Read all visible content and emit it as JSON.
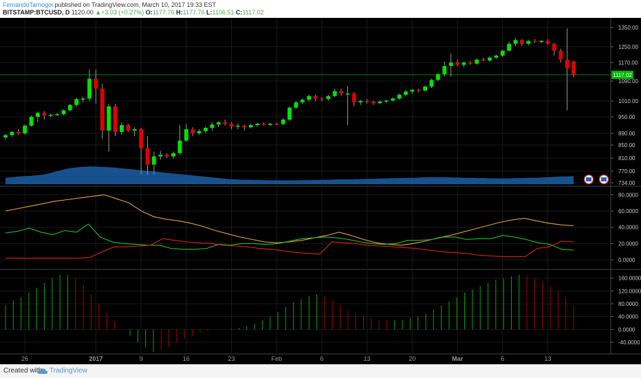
{
  "header": {
    "author": "FernandoTarnogol",
    "published_text": "published on TradingView.com, March 10, 2017 19:33 EST",
    "symbol": "BITSTAMP:BTCUSD, D",
    "last_price": "1120.00",
    "change_arrow": "▲",
    "change": "+3.03 (+0.27%)",
    "o_label": "O:",
    "o_value": "1177.76",
    "h_label": "H:",
    "h_value": "1177.76",
    "l_label": "L:",
    "l_value": "1106.51",
    "c_label": "C:",
    "c_value": "1117.02"
  },
  "footer": {
    "created_with": "Created with",
    "brand": "TradingView",
    "icon": "cloud-icon"
  },
  "colors": {
    "background": "#000000",
    "grid": "#1a1a1a",
    "candle_up": "#00e400",
    "candle_down": "#e00000",
    "volume": "#1a5a9c",
    "adx": "#e6a040",
    "di_plus": "#22c222",
    "di_minus": "#e02020",
    "price_line": "#00cc00"
  },
  "chart_data": [
    {
      "type": "candlestick",
      "title": "BITSTAMP:BTCUSD, D",
      "current_price_label": "1117.02",
      "y_ticks": [
        "1350.00",
        "1250.00",
        "1170.00",
        "1090.00",
        "1010.00",
        "950.00",
        "890.00",
        "850.00",
        "810.00",
        "770.00",
        "734.00"
      ],
      "x_ticks": [
        "26",
        "2017",
        "9",
        "16",
        "23",
        "Feb",
        "6",
        "13",
        "20",
        "Mar",
        "6",
        "13"
      ],
      "candles": [
        {
          "o": 876,
          "h": 888,
          "l": 868,
          "c": 884
        },
        {
          "o": 884,
          "h": 898,
          "l": 878,
          "c": 895
        },
        {
          "o": 895,
          "h": 905,
          "l": 885,
          "c": 890
        },
        {
          "o": 890,
          "h": 922,
          "l": 885,
          "c": 918
        },
        {
          "o": 918,
          "h": 955,
          "l": 914,
          "c": 950
        },
        {
          "o": 950,
          "h": 970,
          "l": 930,
          "c": 965
        },
        {
          "o": 965,
          "h": 972,
          "l": 940,
          "c": 955
        },
        {
          "o": 955,
          "h": 962,
          "l": 948,
          "c": 958
        },
        {
          "o": 958,
          "h": 965,
          "l": 954,
          "c": 960
        },
        {
          "o": 960,
          "h": 978,
          "l": 956,
          "c": 975
        },
        {
          "o": 975,
          "h": 1000,
          "l": 970,
          "c": 995
        },
        {
          "o": 995,
          "h": 1022,
          "l": 988,
          "c": 1018
        },
        {
          "o": 1018,
          "h": 1028,
          "l": 1006,
          "c": 1020
        },
        {
          "o": 1020,
          "h": 1140,
          "l": 1010,
          "c": 1100
        },
        {
          "o": 1100,
          "h": 1140,
          "l": 1000,
          "c": 1060
        },
        {
          "o": 1060,
          "h": 1080,
          "l": 870,
          "c": 900
        },
        {
          "o": 900,
          "h": 1000,
          "l": 830,
          "c": 990
        },
        {
          "o": 990,
          "h": 1000,
          "l": 880,
          "c": 895
        },
        {
          "o": 895,
          "h": 930,
          "l": 885,
          "c": 920
        },
        {
          "o": 920,
          "h": 925,
          "l": 895,
          "c": 900
        },
        {
          "o": 900,
          "h": 912,
          "l": 880,
          "c": 905
        },
        {
          "o": 905,
          "h": 910,
          "l": 760,
          "c": 840
        },
        {
          "o": 840,
          "h": 880,
          "l": 760,
          "c": 790
        },
        {
          "o": 790,
          "h": 830,
          "l": 760,
          "c": 815
        },
        {
          "o": 815,
          "h": 832,
          "l": 805,
          "c": 820
        },
        {
          "o": 820,
          "h": 825,
          "l": 810,
          "c": 815
        },
        {
          "o": 815,
          "h": 830,
          "l": 808,
          "c": 825
        },
        {
          "o": 825,
          "h": 920,
          "l": 820,
          "c": 865
        },
        {
          "o": 865,
          "h": 925,
          "l": 860,
          "c": 905
        },
        {
          "o": 905,
          "h": 912,
          "l": 880,
          "c": 890
        },
        {
          "o": 890,
          "h": 905,
          "l": 884,
          "c": 898
        },
        {
          "o": 898,
          "h": 915,
          "l": 890,
          "c": 910
        },
        {
          "o": 910,
          "h": 930,
          "l": 900,
          "c": 922
        },
        {
          "o": 922,
          "h": 935,
          "l": 912,
          "c": 930
        },
        {
          "o": 930,
          "h": 940,
          "l": 918,
          "c": 924
        },
        {
          "o": 924,
          "h": 930,
          "l": 905,
          "c": 915
        },
        {
          "o": 915,
          "h": 925,
          "l": 905,
          "c": 918
        },
        {
          "o": 918,
          "h": 922,
          "l": 900,
          "c": 912
        },
        {
          "o": 912,
          "h": 925,
          "l": 908,
          "c": 920
        },
        {
          "o": 920,
          "h": 928,
          "l": 914,
          "c": 925
        },
        {
          "o": 925,
          "h": 930,
          "l": 918,
          "c": 921
        },
        {
          "o": 921,
          "h": 928,
          "l": 916,
          "c": 925
        },
        {
          "o": 925,
          "h": 930,
          "l": 920,
          "c": 924
        },
        {
          "o": 924,
          "h": 945,
          "l": 920,
          "c": 940
        },
        {
          "o": 940,
          "h": 990,
          "l": 935,
          "c": 985
        },
        {
          "o": 985,
          "h": 1010,
          "l": 980,
          "c": 1005
        },
        {
          "o": 1005,
          "h": 1020,
          "l": 998,
          "c": 1015
        },
        {
          "o": 1015,
          "h": 1035,
          "l": 1008,
          "c": 1030
        },
        {
          "o": 1030,
          "h": 1035,
          "l": 1010,
          "c": 1020
        },
        {
          "o": 1020,
          "h": 1025,
          "l": 1008,
          "c": 1018
        },
        {
          "o": 1018,
          "h": 1035,
          "l": 1012,
          "c": 1030
        },
        {
          "o": 1030,
          "h": 1060,
          "l": 1025,
          "c": 1050
        },
        {
          "o": 1050,
          "h": 1060,
          "l": 1030,
          "c": 1040
        },
        {
          "o": 1040,
          "h": 1070,
          "l": 920,
          "c": 1040
        },
        {
          "o": 1040,
          "h": 1045,
          "l": 990,
          "c": 1005
        },
        {
          "o": 1005,
          "h": 1015,
          "l": 995,
          "c": 1010
        },
        {
          "o": 1010,
          "h": 1018,
          "l": 1000,
          "c": 1008
        },
        {
          "o": 1008,
          "h": 1012,
          "l": 995,
          "c": 1002
        },
        {
          "o": 1002,
          "h": 1012,
          "l": 998,
          "c": 1008
        },
        {
          "o": 1008,
          "h": 1016,
          "l": 1002,
          "c": 1012
        },
        {
          "o": 1012,
          "h": 1025,
          "l": 1008,
          "c": 1020
        },
        {
          "o": 1020,
          "h": 1040,
          "l": 1015,
          "c": 1035
        },
        {
          "o": 1035,
          "h": 1055,
          "l": 1028,
          "c": 1048
        },
        {
          "o": 1048,
          "h": 1058,
          "l": 1040,
          "c": 1055
        },
        {
          "o": 1055,
          "h": 1060,
          "l": 1045,
          "c": 1052
        },
        {
          "o": 1052,
          "h": 1072,
          "l": 1048,
          "c": 1068
        },
        {
          "o": 1068,
          "h": 1100,
          "l": 1062,
          "c": 1095
        },
        {
          "o": 1095,
          "h": 1125,
          "l": 1090,
          "c": 1120
        },
        {
          "o": 1120,
          "h": 1175,
          "l": 1110,
          "c": 1155
        },
        {
          "o": 1155,
          "h": 1215,
          "l": 1110,
          "c": 1170
        },
        {
          "o": 1170,
          "h": 1185,
          "l": 1155,
          "c": 1160
        },
        {
          "o": 1160,
          "h": 1175,
          "l": 1150,
          "c": 1170
        },
        {
          "o": 1170,
          "h": 1180,
          "l": 1160,
          "c": 1165
        },
        {
          "o": 1165,
          "h": 1190,
          "l": 1160,
          "c": 1185
        },
        {
          "o": 1185,
          "h": 1195,
          "l": 1175,
          "c": 1180
        },
        {
          "o": 1180,
          "h": 1200,
          "l": 1175,
          "c": 1195
        },
        {
          "o": 1195,
          "h": 1210,
          "l": 1188,
          "c": 1205
        },
        {
          "o": 1205,
          "h": 1235,
          "l": 1200,
          "c": 1230
        },
        {
          "o": 1230,
          "h": 1275,
          "l": 1225,
          "c": 1265
        },
        {
          "o": 1265,
          "h": 1295,
          "l": 1255,
          "c": 1285
        },
        {
          "o": 1285,
          "h": 1290,
          "l": 1255,
          "c": 1265
        },
        {
          "o": 1265,
          "h": 1285,
          "l": 1258,
          "c": 1280
        },
        {
          "o": 1280,
          "h": 1290,
          "l": 1270,
          "c": 1275
        },
        {
          "o": 1275,
          "h": 1285,
          "l": 1268,
          "c": 1280
        },
        {
          "o": 1280,
          "h": 1290,
          "l": 1262,
          "c": 1265
        },
        {
          "o": 1265,
          "h": 1270,
          "l": 1205,
          "c": 1230
        },
        {
          "o": 1230,
          "h": 1240,
          "l": 1170,
          "c": 1185
        },
        {
          "o": 1185,
          "h": 1345,
          "l": 975,
          "c": 1145
        },
        {
          "o": 1177,
          "h": 1177,
          "l": 1106,
          "c": 1117
        }
      ],
      "volume": [
        20,
        22,
        24,
        25,
        26,
        28,
        30,
        35,
        40,
        45,
        50,
        52,
        54,
        55,
        55,
        54,
        53,
        52,
        50,
        48,
        46,
        44,
        42,
        40,
        38,
        36,
        34,
        32,
        30,
        28,
        26,
        24,
        22,
        20,
        18,
        16,
        15,
        14,
        14,
        13,
        13,
        12,
        12,
        12,
        12,
        12,
        12,
        13,
        13,
        13,
        14,
        14,
        15,
        15,
        15,
        16,
        16,
        17,
        17,
        18,
        18,
        19,
        19,
        20,
        20,
        21,
        22,
        22,
        22,
        22,
        21,
        21,
        20,
        20,
        19,
        19,
        18,
        18,
        18,
        18,
        19,
        19,
        20,
        20,
        21,
        22,
        23,
        24,
        24,
        25
      ],
      "volume_max": 60
    },
    {
      "type": "line",
      "title": "DMI / ADX",
      "y_ticks": [
        "80.0000",
        "60.0000",
        "40.0000",
        "20.0000",
        "0.0000"
      ],
      "ylim": [
        -5,
        82
      ],
      "series": [
        {
          "values": [
            60,
            63,
            66,
            69,
            72,
            74,
            76,
            78,
            80,
            75,
            70,
            60,
            53,
            50,
            48,
            45,
            41,
            36,
            32,
            28,
            25,
            22,
            21,
            22,
            24,
            27,
            30,
            34,
            30,
            25,
            21,
            19,
            18,
            20,
            23,
            27,
            30,
            34,
            38,
            42,
            46,
            49,
            51,
            48,
            45,
            43,
            42
          ]
        },
        {
          "values": [
            33,
            35,
            39,
            34,
            31,
            36,
            34,
            44,
            28,
            22,
            20,
            19,
            18,
            18,
            14,
            13,
            13,
            14,
            19,
            18,
            20,
            20,
            19,
            20,
            23,
            26,
            27,
            28,
            27,
            25,
            22,
            20,
            19,
            20,
            24,
            24,
            25,
            28,
            28,
            25,
            26,
            26,
            30,
            28,
            25,
            21,
            19,
            13,
            12
          ]
        },
        {
          "values": [
            2,
            2,
            2,
            2,
            2,
            2,
            2,
            3,
            10,
            16,
            16,
            17,
            18,
            26,
            24,
            22,
            21,
            20,
            18,
            17,
            16,
            14,
            13,
            11,
            9,
            8,
            7,
            22,
            21,
            20,
            18,
            17,
            16,
            15,
            14,
            12,
            10,
            9,
            8,
            6,
            5,
            4,
            4,
            4,
            14,
            16,
            23,
            22
          ]
        }
      ]
    },
    {
      "type": "bar",
      "title": "Histogram",
      "y_ticks": [
        "160.0000",
        "120.0000",
        "80.0000",
        "40.0000",
        "0.0000",
        "-40.0000"
      ],
      "ylim": [
        -70,
        170
      ],
      "values": [
        75,
        90,
        100,
        115,
        130,
        145,
        160,
        170,
        170,
        160,
        140,
        110,
        80,
        50,
        25,
        0,
        -20,
        -40,
        -55,
        -70,
        -65,
        -55,
        -40,
        -30,
        -20,
        -10,
        -5,
        0,
        0,
        2,
        5,
        10,
        18,
        28,
        40,
        55,
        70,
        85,
        95,
        105,
        110,
        105,
        90,
        75,
        60,
        50,
        40,
        35,
        30,
        28,
        28,
        30,
        35,
        40,
        50,
        62,
        75,
        88,
        100,
        115,
        125,
        135,
        145,
        155,
        160,
        165,
        170,
        168,
        160,
        150,
        135,
        120,
        100,
        70
      ]
    }
  ]
}
